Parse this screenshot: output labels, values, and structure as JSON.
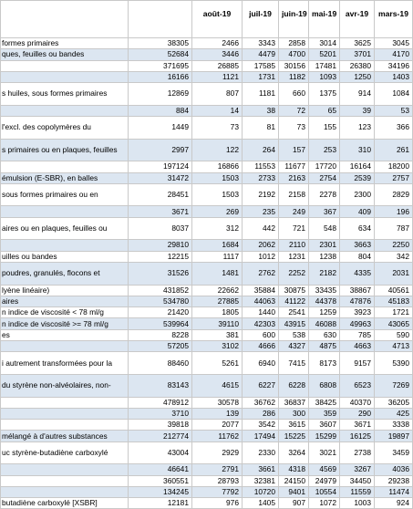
{
  "table": {
    "header": [
      "août-19",
      "juil-19",
      "juin-19",
      "mai-19",
      "avr-19",
      "mars-19"
    ],
    "rows": [
      [
        {
          "label": "formes primaires",
          "values": [
            38305,
            2466,
            3343,
            2858,
            3014,
            3625,
            3045
          ]
        }
      ],
      [
        {
          "label": "ques, feuilles ou bandes",
          "values": [
            52684,
            3446,
            4479,
            4700,
            5201,
            3701,
            4170
          ]
        }
      ],
      [
        {
          "label": null,
          "values": [
            371695,
            26885,
            17585,
            30156,
            17481,
            26380,
            34196
          ]
        }
      ],
      [
        {
          "label": null,
          "values": [
            16166,
            1121,
            1731,
            1182,
            1093,
            1250,
            1403
          ]
        }
      ],
      [
        {
          "label": "s huiles, sous formes primaires",
          "tall": true,
          "values": [
            12869,
            807,
            1181,
            660,
            1375,
            914,
            1084
          ]
        }
      ],
      [
        {
          "label": null,
          "values": [
            884,
            14,
            38,
            72,
            65,
            39,
            53
          ]
        }
      ],
      [
        {
          "label": "l'excl. des copolymères du",
          "tall": true,
          "values": [
            1449,
            73,
            81,
            73,
            155,
            123,
            366
          ]
        }
      ],
      [
        {
          "label": "s primaires ou en plaques, feuilles",
          "tall": true,
          "values": [
            2997,
            122,
            264,
            157,
            253,
            310,
            261
          ]
        }
      ],
      [
        {
          "label": null,
          "values": [
            197124,
            16866,
            11553,
            11677,
            17720,
            16164,
            18200
          ]
        }
      ],
      [
        {
          "label": "émulsion (E-SBR), en balles",
          "values": [
            31472,
            1503,
            2733,
            2163,
            2754,
            2539,
            2757
          ]
        }
      ],
      [
        {
          "label": "sous formes primaires ou en",
          "tall": true,
          "values": [
            28451,
            1503,
            2192,
            2158,
            2278,
            2300,
            2829
          ]
        }
      ],
      [
        {
          "label": null,
          "values": [
            3671,
            269,
            235,
            249,
            367,
            409,
            196
          ]
        }
      ],
      [
        {
          "label": "aires ou en plaques, feuilles ou",
          "tall": true,
          "values": [
            8037,
            312,
            442,
            721,
            548,
            634,
            787
          ]
        }
      ],
      [
        {
          "label": null,
          "values": [
            29810,
            1684,
            2062,
            2110,
            2301,
            3663,
            2250
          ]
        }
      ],
      [
        {
          "label": "uilles ou bandes",
          "values": [
            12215,
            1117,
            1012,
            1231,
            1238,
            804,
            342
          ]
        }
      ],
      [
        {
          "label": "poudres, granulés, flocons et",
          "tall": true,
          "values": [
            31526,
            1481,
            2762,
            2252,
            2182,
            4335,
            2031
          ]
        }
      ],
      [
        {
          "label": "lyène linéaire)",
          "values": [
            431852,
            22662,
            35884,
            30875,
            33435,
            38867,
            40561
          ]
        }
      ],
      [
        {
          "label": "aires",
          "values": [
            534780,
            27885,
            44063,
            41122,
            44378,
            47876,
            45183
          ]
        }
      ],
      [
        {
          "label": "n indice de viscosité < 78 ml/g",
          "values": [
            21420,
            1805,
            1440,
            2541,
            1259,
            3923,
            1721
          ]
        }
      ],
      [
        {
          "label": "n indice de viscosité >= 78 ml/g",
          "values": [
            539964,
            39110,
            42303,
            43915,
            46088,
            49963,
            43065
          ]
        }
      ],
      [
        {
          "label": "es",
          "values": [
            8228,
            381,
            600,
            538,
            630,
            785,
            590
          ]
        }
      ],
      [
        {
          "label": null,
          "values": [
            57205,
            3102,
            4666,
            4327,
            4875,
            4663,
            4713
          ]
        }
      ],
      [
        {
          "label": "i autrement transformées pour la",
          "tall": true,
          "values": [
            88460,
            5261,
            6940,
            7415,
            8173,
            9157,
            5390
          ]
        }
      ],
      [
        {
          "label": "du styrène non-alvéolaires, non-",
          "tall": true,
          "values": [
            83143,
            4615,
            6227,
            6228,
            6808,
            6523,
            7269
          ]
        }
      ],
      [
        {
          "label": null,
          "values": [
            478912,
            30578,
            36762,
            36837,
            38425,
            40370,
            36205
          ]
        }
      ],
      [
        {
          "label": null,
          "values": [
            3710,
            139,
            286,
            300,
            359,
            290,
            425
          ]
        }
      ],
      [
        {
          "label": null,
          "values": [
            39818,
            2077,
            3542,
            3615,
            3607,
            3671,
            3338
          ]
        }
      ],
      [
        {
          "label": "mélangé à d'autres substances",
          "values": [
            212774,
            11762,
            17494,
            15225,
            15299,
            16125,
            19897
          ]
        }
      ],
      [
        {
          "label": "uc styrène-butadiène carboxylé",
          "tall": true,
          "values": [
            43004,
            2929,
            2330,
            3264,
            3021,
            2738,
            3459
          ]
        }
      ],
      [
        {
          "label": null,
          "values": [
            46641,
            2791,
            3661,
            4318,
            4569,
            3267,
            4036
          ]
        }
      ],
      [
        {
          "label": null,
          "values": [
            360551,
            28793,
            32381,
            24150,
            24979,
            34450,
            29238
          ]
        }
      ],
      [
        {
          "label": null,
          "values": [
            134245,
            7792,
            10720,
            9401,
            10554,
            11559,
            11474
          ]
        }
      ],
      [
        {
          "label": "butadiène carboxylé [XSBR]",
          "values": [
            12181,
            976,
            1405,
            907,
            1072,
            1003,
            924
          ]
        }
      ]
    ]
  }
}
